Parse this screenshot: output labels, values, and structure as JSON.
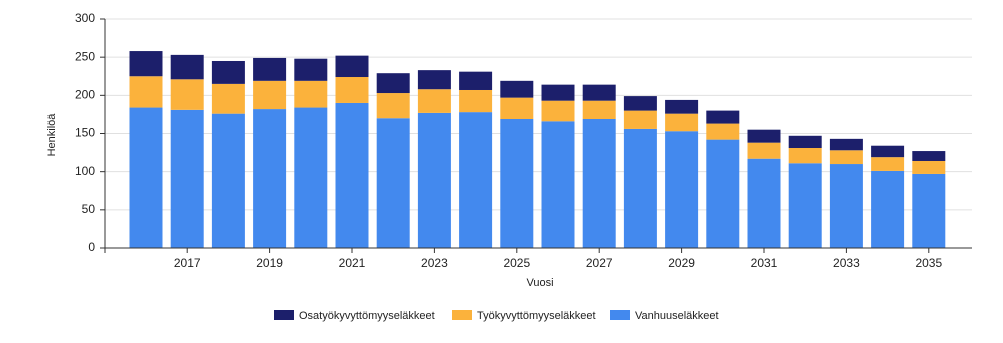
{
  "chart_data": {
    "type": "stacked-bar",
    "x_label": "Vuosi",
    "y_label": "Henkilöä",
    "categories": [
      null,
      "2017",
      null,
      "2019",
      null,
      "2021",
      null,
      "2023",
      null,
      "2025",
      null,
      "2027",
      null,
      "2029",
      null,
      "2031",
      null,
      "2033",
      null,
      "2035"
    ],
    "series": [
      {
        "name": "Osatyökyvyttömyyseläkkeet",
        "color": "#1c1f6b",
        "values": [
          33,
          32,
          30,
          30,
          29,
          28,
          26,
          25,
          24,
          22,
          21,
          21,
          19,
          18,
          17,
          17,
          16,
          15,
          15,
          13
        ]
      },
      {
        "name": "Työkyvyttömyyseläkkeet",
        "color": "#fbb23c",
        "values": [
          41,
          40,
          39,
          37,
          35,
          34,
          33,
          31,
          29,
          28,
          27,
          24,
          24,
          23,
          21,
          21,
          20,
          18,
          18,
          17
        ]
      },
      {
        "name": "Vanhuuseläkkeet",
        "color": "#4389ee",
        "values": [
          184,
          181,
          176,
          182,
          184,
          190,
          170,
          177,
          178,
          169,
          166,
          169,
          156,
          153,
          142,
          117,
          111,
          110,
          101,
          97
        ]
      }
    ],
    "ylim": [
      0,
      300
    ],
    "yticks": [
      0,
      50,
      100,
      150,
      200,
      250,
      300
    ],
    "grid": true
  }
}
